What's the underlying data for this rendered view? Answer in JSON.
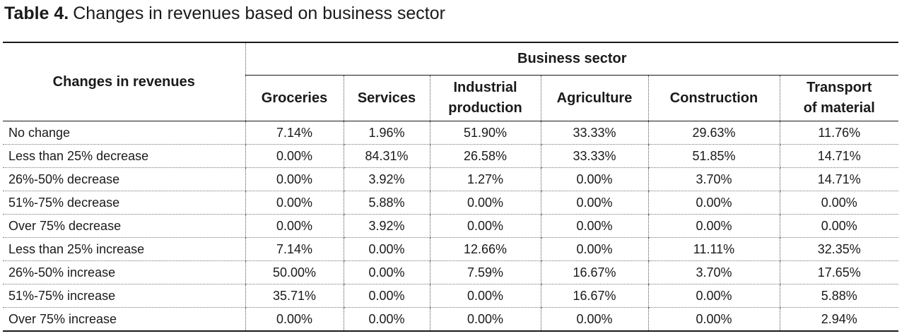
{
  "caption": {
    "label": "Table 4.",
    "text": "Changes in revenues based on business sector"
  },
  "table": {
    "row_header": "Changes in revenues",
    "group_header": "Business sector",
    "columns": [
      {
        "line1": "Groceries",
        "line2": ""
      },
      {
        "line1": "Services",
        "line2": ""
      },
      {
        "line1": "Industrial",
        "line2": "production"
      },
      {
        "line1": "Agriculture",
        "line2": ""
      },
      {
        "line1": "Construction",
        "line2": ""
      },
      {
        "line1": "Transport",
        "line2": "of material"
      }
    ],
    "rows": [
      {
        "label": "No change",
        "values": [
          "7.14%",
          "1.96%",
          "51.90%",
          "33.33%",
          "29.63%",
          "11.76%"
        ]
      },
      {
        "label": "Less than 25% decrease",
        "values": [
          "0.00%",
          "84.31%",
          "26.58%",
          "33.33%",
          "51.85%",
          "14.71%"
        ]
      },
      {
        "label": "26%-50% decrease",
        "values": [
          "0.00%",
          "3.92%",
          "1.27%",
          "0.00%",
          "3.70%",
          "14.71%"
        ]
      },
      {
        "label": "51%-75% decrease",
        "values": [
          "0.00%",
          "5.88%",
          "0.00%",
          "0.00%",
          "0.00%",
          "0.00%"
        ]
      },
      {
        "label": "Over 75% decrease",
        "values": [
          "0.00%",
          "3.92%",
          "0.00%",
          "0.00%",
          "0.00%",
          "0.00%"
        ]
      },
      {
        "label": "Less than 25% increase",
        "values": [
          "7.14%",
          "0.00%",
          "12.66%",
          "0.00%",
          "11.11%",
          "32.35%"
        ]
      },
      {
        "label": "26%-50% increase",
        "values": [
          "50.00%",
          "0.00%",
          "7.59%",
          "16.67%",
          "3.70%",
          "17.65%"
        ]
      },
      {
        "label": "51%-75% increase",
        "values": [
          "35.71%",
          "0.00%",
          "0.00%",
          "16.67%",
          "0.00%",
          "5.88%"
        ]
      },
      {
        "label": "Over 75% increase",
        "values": [
          "0.00%",
          "0.00%",
          "0.00%",
          "0.00%",
          "0.00%",
          "2.94%"
        ]
      }
    ]
  }
}
